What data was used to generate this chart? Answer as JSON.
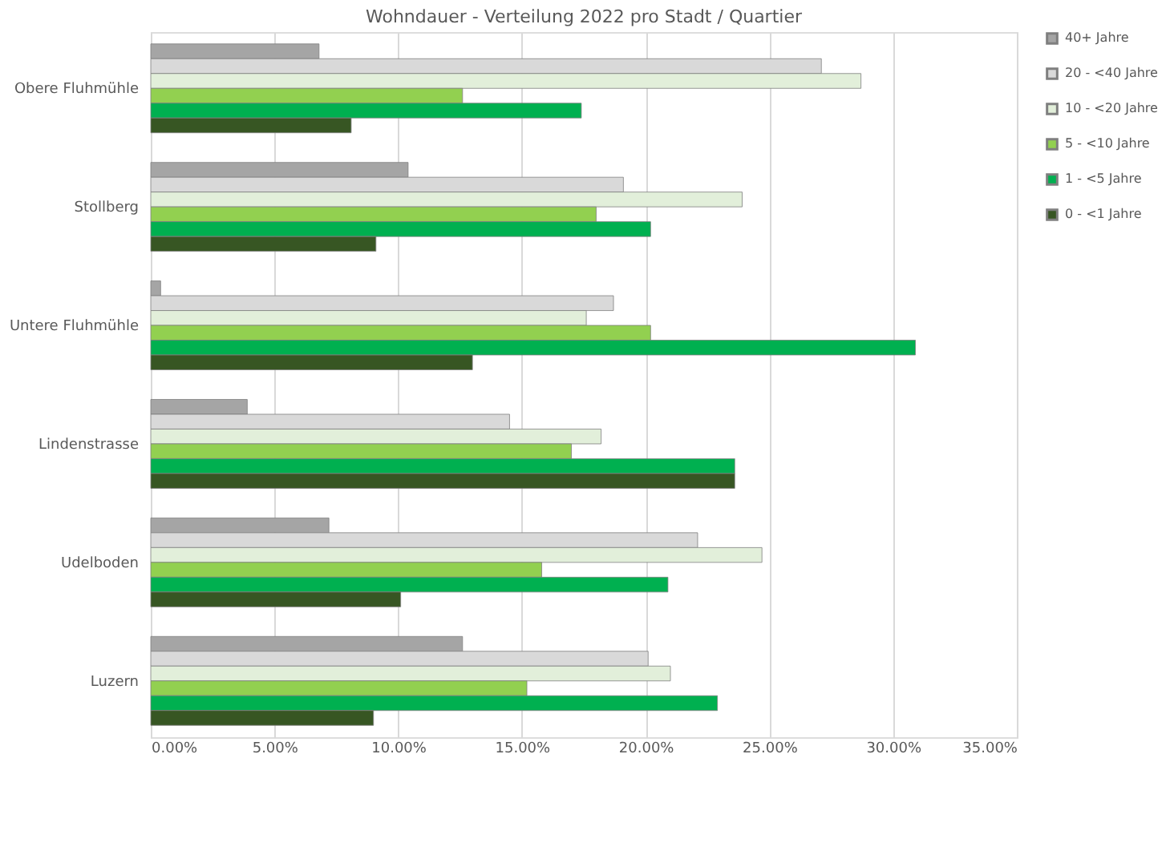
{
  "chart_data": {
    "type": "bar",
    "orientation": "horizontal",
    "title": "Wohndauer - Verteilung 2022 pro Stadt / Quartier",
    "categories": [
      "Obere Fluhmühle",
      "Stollberg",
      "Untere Fluhmühle",
      "Lindenstrasse",
      "Udelboden",
      "Luzern"
    ],
    "series": [
      {
        "name": "40+ Jahre",
        "color": "#a5a5a5",
        "values": [
          6.8,
          10.4,
          0.4,
          3.9,
          7.2,
          12.6
        ]
      },
      {
        "name": "20 - <40 Jahre",
        "color": "#d9d9d9",
        "values": [
          27.1,
          19.1,
          18.7,
          14.5,
          22.1,
          20.1
        ]
      },
      {
        "name": "10 - <20 Jahre",
        "color": "#e2efda",
        "values": [
          28.7,
          23.9,
          17.6,
          18.2,
          24.7,
          21.0
        ]
      },
      {
        "name": "5 - <10 Jahre",
        "color": "#92d050",
        "values": [
          12.6,
          18.0,
          20.2,
          17.0,
          15.8,
          15.2
        ]
      },
      {
        "name": "1 - <5 Jahre",
        "color": "#00b050",
        "values": [
          17.4,
          20.2,
          30.9,
          23.6,
          20.9,
          22.9
        ]
      },
      {
        "name": "0 - <1 Jahre",
        "color": "#375623",
        "values": [
          8.1,
          9.1,
          13.0,
          23.6,
          10.1,
          9.0
        ]
      }
    ],
    "xlim": [
      0,
      35
    ],
    "xticks": [
      {
        "value": 0,
        "label": "0.00%"
      },
      {
        "value": 5,
        "label": "5.00%"
      },
      {
        "value": 10,
        "label": "10.00%"
      },
      {
        "value": 15,
        "label": "15.00%"
      },
      {
        "value": 20,
        "label": "20.00%"
      },
      {
        "value": 25,
        "label": "25.00%"
      },
      {
        "value": 30,
        "label": "30.00%"
      },
      {
        "value": 35,
        "label": "35.00%"
      }
    ],
    "grid": "x",
    "legend": "right"
  }
}
